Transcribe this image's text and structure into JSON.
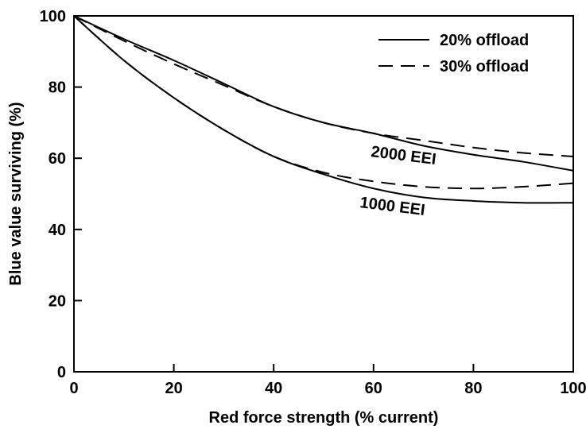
{
  "chart_data": {
    "type": "line",
    "title": "",
    "xlabel": "Red force strength (% current)",
    "ylabel": "Blue value surviving (%)",
    "xlim": [
      0,
      100
    ],
    "ylim": [
      0,
      100
    ],
    "xticks": [
      0,
      20,
      40,
      60,
      80,
      100
    ],
    "yticks": [
      0,
      20,
      40,
      60,
      80,
      100
    ],
    "grid": false,
    "legend_position": "top-right",
    "legend": [
      {
        "label": "20% offload",
        "style": "solid"
      },
      {
        "label": "30% offload",
        "style": "dashed"
      }
    ],
    "annotations": [
      {
        "text": "2000 EEI",
        "x": 68,
        "y": 59
      },
      {
        "text": "1000 EEI",
        "x": 65,
        "y": 44.5
      }
    ],
    "series": [
      {
        "group": "2000 EEI",
        "style": "solid",
        "x": [
          0,
          10,
          20,
          30,
          40,
          50,
          60,
          70,
          80,
          90,
          100
        ],
        "y": [
          100,
          93.5,
          87.5,
          81,
          74.5,
          70,
          67,
          63.5,
          61,
          59,
          56.5
        ]
      },
      {
        "group": "2000 EEI",
        "style": "dashed",
        "x": [
          0,
          10,
          20,
          30,
          40,
          50,
          60,
          70,
          80,
          90,
          100
        ],
        "y": [
          100,
          93,
          86.5,
          80.5,
          74.5,
          70,
          67,
          65,
          63,
          61.5,
          60.5
        ]
      },
      {
        "group": "1000 EEI",
        "style": "solid",
        "x": [
          0,
          10,
          20,
          30,
          40,
          50,
          60,
          70,
          80,
          90,
          100
        ],
        "y": [
          100,
          87.5,
          77,
          68,
          60.5,
          55.5,
          51.5,
          49,
          48,
          47.5,
          47.5
        ]
      },
      {
        "group": "1000 EEI",
        "style": "dashed",
        "x": [
          0,
          10,
          20,
          30,
          40,
          50,
          60,
          70,
          80,
          90,
          100
        ],
        "y": [
          100,
          87.5,
          77,
          68,
          60.5,
          56,
          53.5,
          52,
          51.5,
          52,
          53
        ]
      }
    ]
  }
}
